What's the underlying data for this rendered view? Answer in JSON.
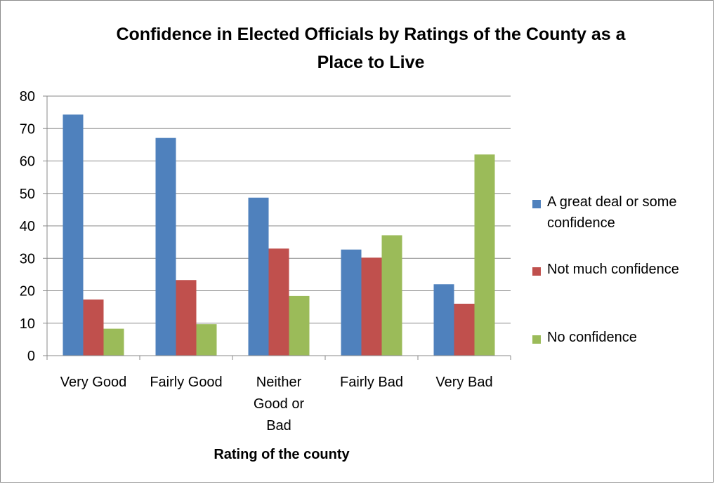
{
  "chart_data": {
    "type": "bar",
    "title_lines": [
      "Confidence in Elected Officials by Ratings of the County as a",
      "Place to Live"
    ],
    "xlabel": "Rating of the county",
    "ylabel": "",
    "ylim": [
      0,
      80
    ],
    "yticks": [
      0,
      10,
      20,
      30,
      40,
      50,
      60,
      70,
      80
    ],
    "grid": true,
    "legend_position": "right",
    "categories": [
      [
        "Very Good"
      ],
      [
        "Fairly Good"
      ],
      [
        "Neither",
        "Good or",
        "Bad"
      ],
      [
        "Fairly Bad"
      ],
      [
        "Very Bad"
      ]
    ],
    "series": [
      {
        "name_lines": [
          "A great deal or some",
          "confidence"
        ],
        "color": "#4F81BD",
        "values": [
          74.3,
          67.1,
          48.7,
          32.7,
          22
        ]
      },
      {
        "name_lines": [
          "Not much confidence"
        ],
        "color": "#C0504D",
        "values": [
          17.3,
          23.3,
          33,
          30.2,
          16
        ]
      },
      {
        "name_lines": [
          "No confidence"
        ],
        "color": "#9BBB59",
        "values": [
          8.3,
          9.7,
          18.4,
          37.1,
          62
        ]
      }
    ]
  }
}
